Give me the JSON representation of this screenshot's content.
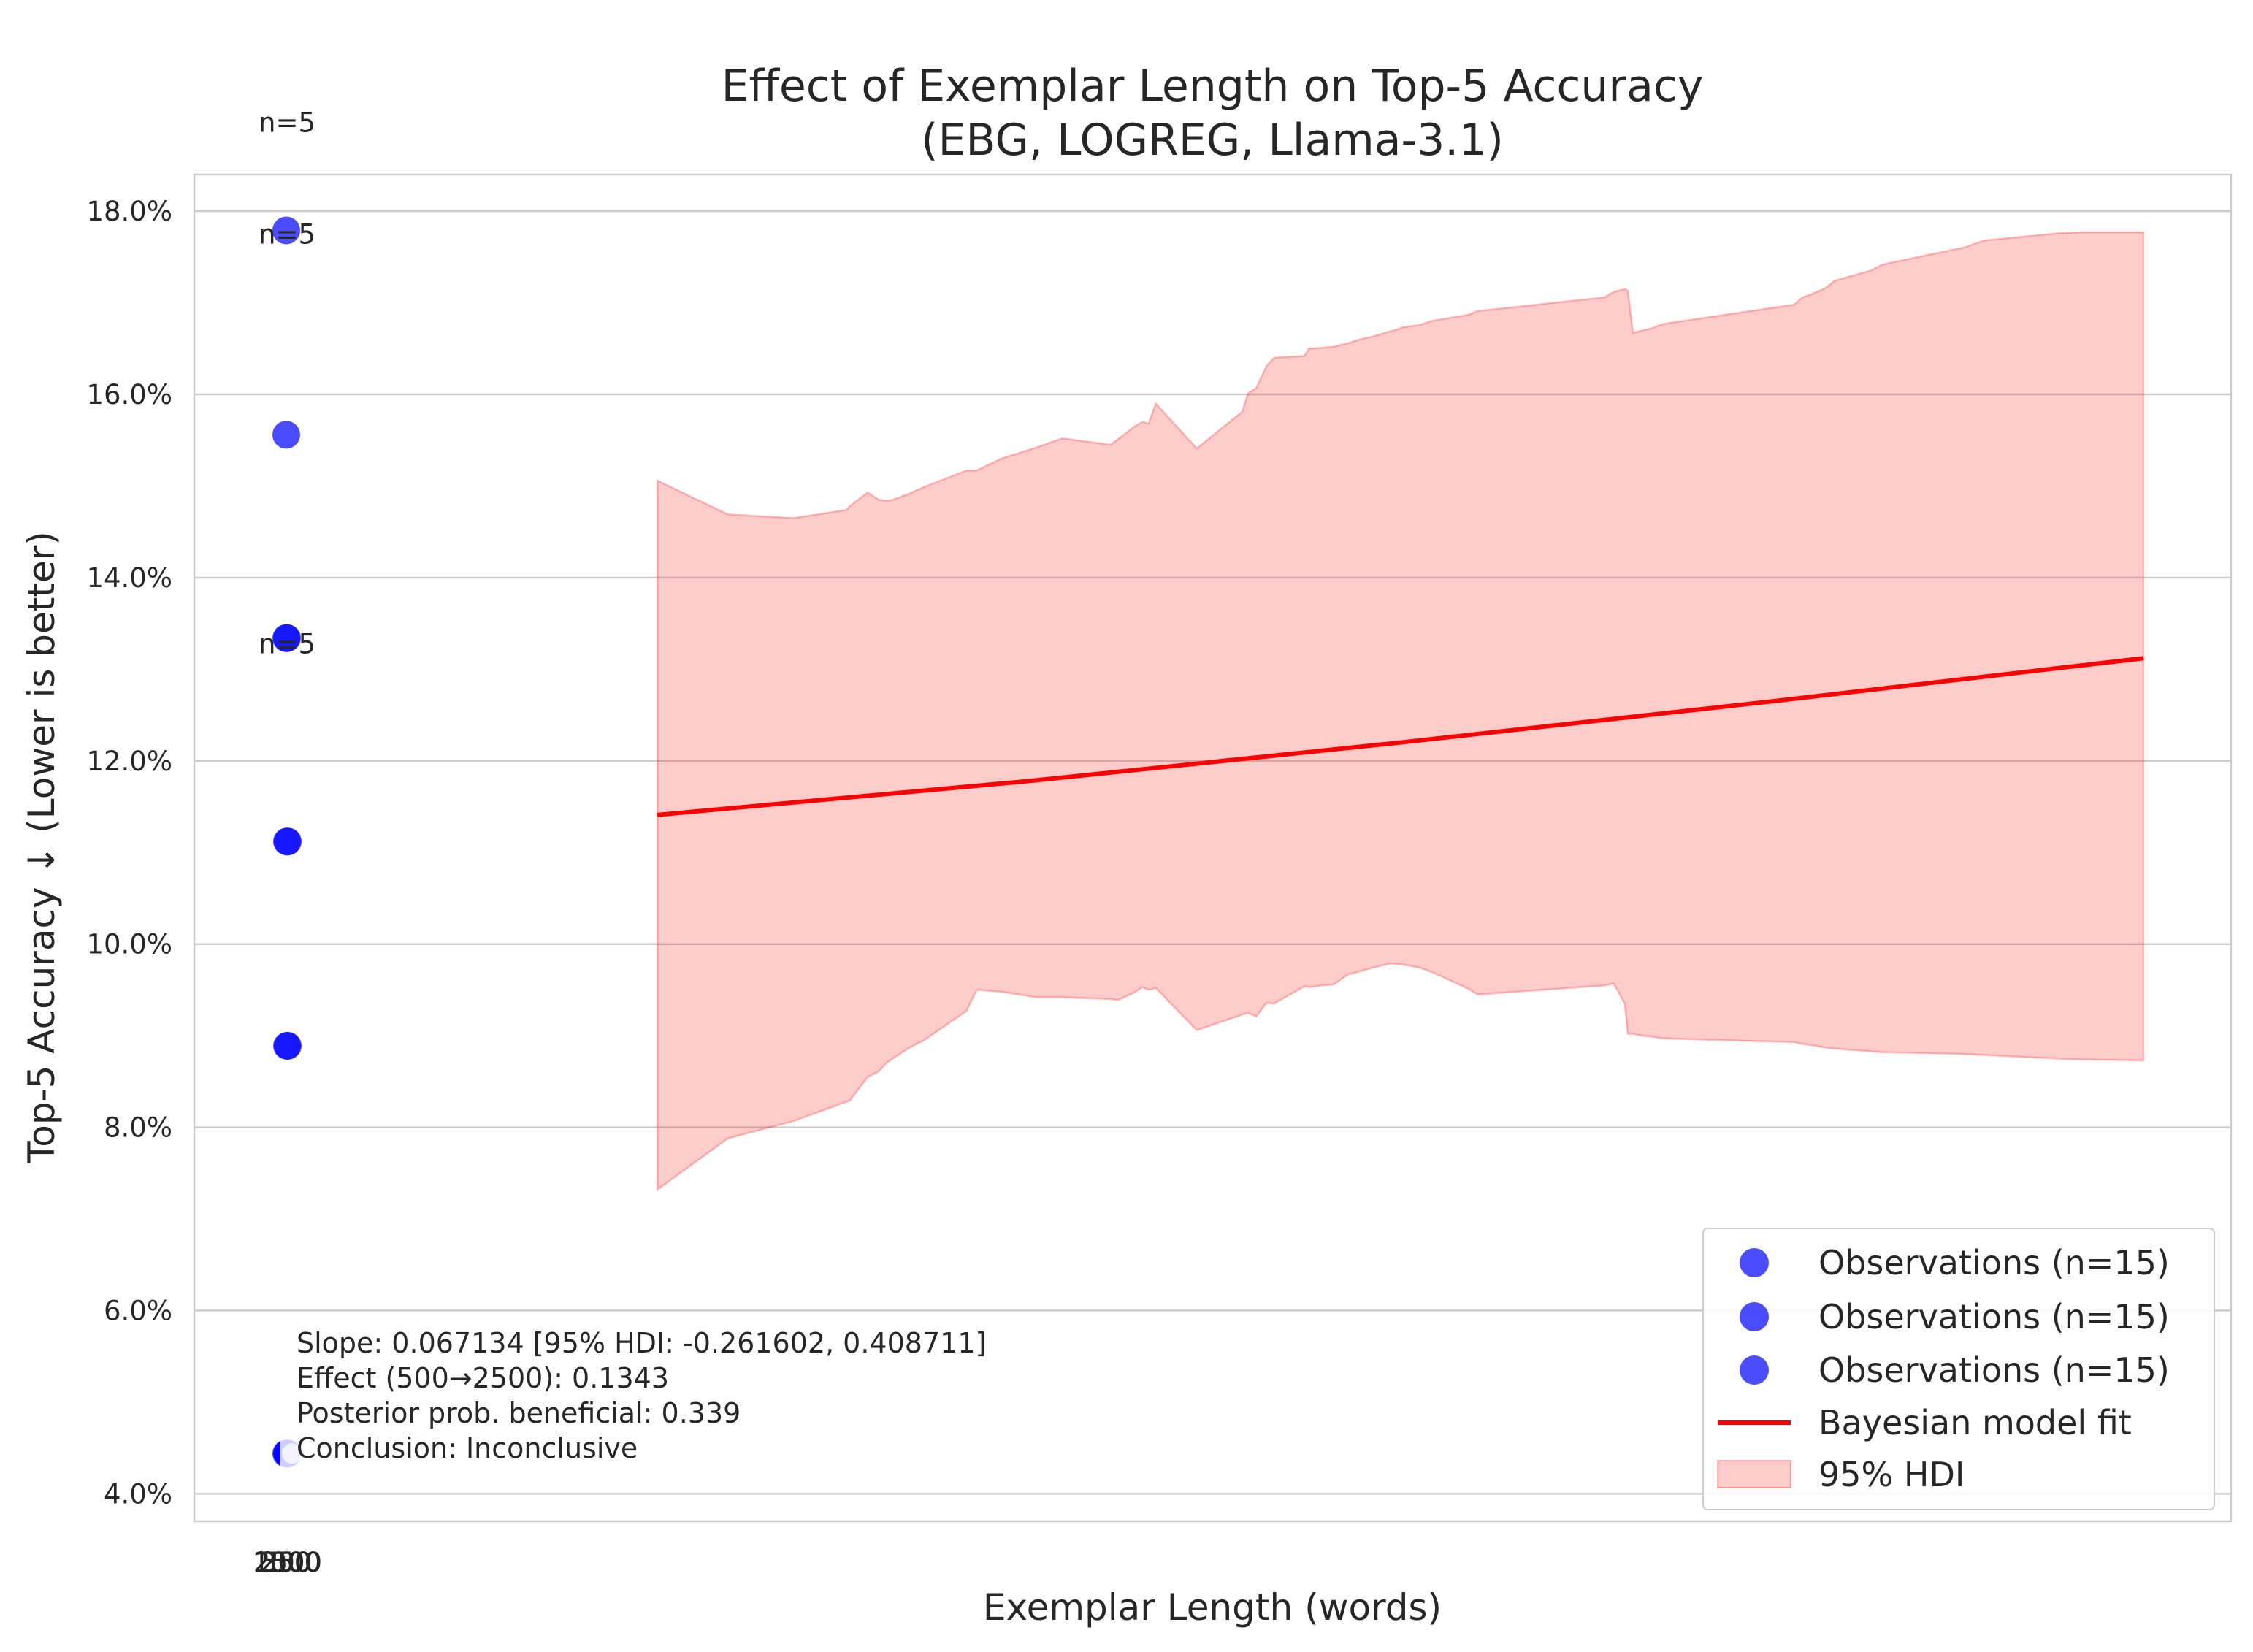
{
  "chart_data": {
    "type": "scatter",
    "title": "Effect of Exemplar Length on Top-5 Accuracy",
    "subtitle": "(EBG, LOGREG, Llama-3.1)",
    "xlabel": "Exemplar Length (words)",
    "ylabel": "Top-5 Accuracy ↓ (Lower is better)",
    "ylim": [
      0.037,
      0.184
    ],
    "y_ticks": [
      0.04,
      0.06,
      0.08,
      0.1,
      0.12,
      0.14,
      0.16,
      0.18
    ],
    "y_tick_labels": [
      "4.0%",
      "6.0%",
      "8.0%",
      "10.0%",
      "12.0%",
      "14.0%",
      "16.0%",
      "18.0%"
    ],
    "x_tick_labels": [
      "250",
      "500",
      "1000",
      "2500"
    ],
    "grid": "horizontal",
    "legend_position": "lower-right",
    "series": [
      {
        "name": "Observations (n=15)",
        "color": "#0000ff",
        "points": [
          {
            "x": 500,
            "y": 0.1779
          },
          {
            "x": 500,
            "y": 0.1556
          },
          {
            "x": 500,
            "y": 0.1334
          },
          {
            "x": 500,
            "y": 0.0444
          }
        ]
      },
      {
        "name": "Observations (n=15)",
        "color": "#0000ff",
        "points": [
          {
            "x": 1000,
            "y": 0.1334
          },
          {
            "x": 1000,
            "y": 0.1112
          },
          {
            "x": 1000,
            "y": 0.0889
          },
          {
            "x": 1000,
            "y": 0.0444
          }
        ]
      },
      {
        "name": "Observations (n=15)",
        "color": "#0000ff",
        "points": [
          {
            "x": 2500,
            "y": 0.1112
          },
          {
            "x": 2500,
            "y": 0.0889
          },
          {
            "x": 2500,
            "y": 0.0444
          }
        ]
      }
    ],
    "fit": {
      "name": "Bayesian model fit",
      "color": "#ff0000",
      "x": [
        500,
        1000,
        1500,
        2000,
        2500
      ],
      "y": [
        0.1141,
        0.1178,
        0.122,
        0.1265,
        0.1312
      ]
    },
    "hdi": {
      "name": "95% HDI",
      "color": "#ff9999",
      "x": [
        500,
        595,
        684,
        755,
        759,
        783,
        798,
        808,
        817,
        837,
        859,
        916,
        930,
        963,
        1010,
        1045,
        1110,
        1120,
        1142,
        1153,
        1161,
        1171,
        1226,
        1287,
        1295,
        1306,
        1320,
        1330,
        1371,
        1377,
        1395,
        1411,
        1419,
        1430,
        1445,
        1462,
        1487,
        1496,
        1502,
        1527,
        1541,
        1592,
        1604,
        1775,
        1787,
        1802,
        1806,
        1813,
        1826,
        1838,
        1854,
        2030,
        2041,
        2052,
        2072,
        2084,
        2132,
        2150,
        2262,
        2285,
        2386,
        2419,
        2500
      ],
      "upper": [
        0.1506,
        0.1469,
        0.1465,
        0.1474,
        0.1478,
        0.1493,
        0.1485,
        0.1484,
        0.1485,
        0.1491,
        0.1499,
        0.1517,
        0.1517,
        0.153,
        0.1542,
        0.1552,
        0.1545,
        0.1551,
        0.1565,
        0.157,
        0.1568,
        0.159,
        0.1541,
        0.1581,
        0.1601,
        0.1607,
        0.1631,
        0.164,
        0.1642,
        0.165,
        0.1651,
        0.1652,
        0.1654,
        0.1656,
        0.166,
        0.1663,
        0.1669,
        0.1671,
        0.1673,
        0.1676,
        0.168,
        0.1687,
        0.1691,
        0.1706,
        0.1712,
        0.1715,
        0.1713,
        0.1667,
        0.167,
        0.1672,
        0.1677,
        0.1698,
        0.1706,
        0.1709,
        0.1716,
        0.1724,
        0.1735,
        0.1742,
        0.1761,
        0.1768,
        0.1776,
        0.1777,
        0.1777
      ],
      "lower": [
        0.0732,
        0.0788,
        0.0807,
        0.0828,
        0.0829,
        0.0855,
        0.0861,
        0.087,
        0.0875,
        0.0886,
        0.0895,
        0.0927,
        0.095,
        0.0948,
        0.0942,
        0.0942,
        0.094,
        0.0939,
        0.0947,
        0.0953,
        0.095,
        0.0952,
        0.0906,
        0.0923,
        0.0925,
        0.0921,
        0.0936,
        0.0935,
        0.0954,
        0.0953,
        0.0955,
        0.0956,
        0.0961,
        0.0967,
        0.097,
        0.0974,
        0.0979,
        0.0978,
        0.0978,
        0.0974,
        0.097,
        0.0951,
        0.0945,
        0.0955,
        0.0957,
        0.0935,
        0.0902,
        0.0902,
        0.09,
        0.0899,
        0.0897,
        0.0893,
        0.0891,
        0.089,
        0.0887,
        0.0886,
        0.0883,
        0.0882,
        0.088,
        0.0879,
        0.0875,
        0.0874,
        0.0873
      ]
    },
    "annotations": [
      {
        "text": "n=5",
        "x": 500,
        "y": 0.1897
      },
      {
        "text": "n=5",
        "x": 1000,
        "y": 0.1775
      },
      {
        "text": "n=5",
        "x": 2500,
        "y": 0.1328
      }
    ],
    "stats_box": [
      "Slope: 0.067134 [95% HDI: -0.261602, 0.408711]",
      "Effect (500→2500): 0.1343",
      "Posterior prob. beneficial: 0.339",
      "Conclusion: Inconclusive"
    ]
  }
}
